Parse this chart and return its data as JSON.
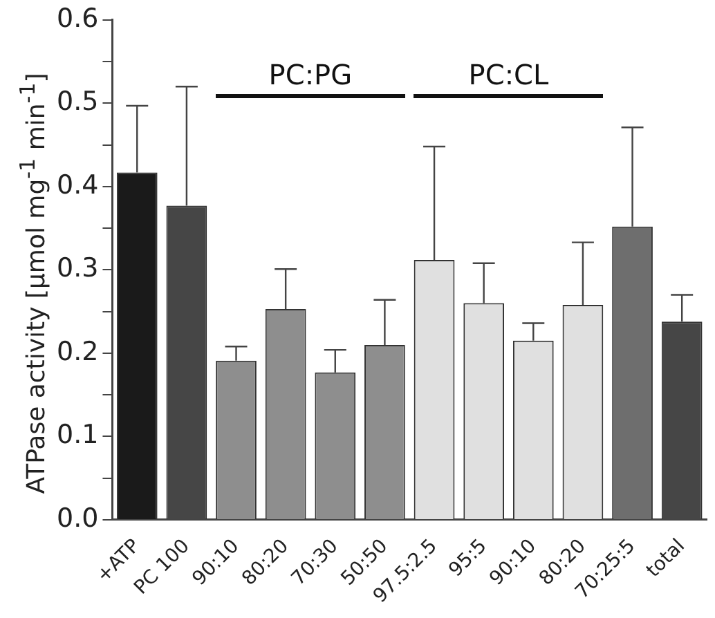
{
  "chart_data": {
    "type": "bar",
    "ylabel": "ATPase activity [µmol mg$^{-1}$ min$^{-1}$]",
    "categories": [
      "+ATP",
      "PC 100",
      "90:10",
      "80:20",
      "70:30",
      "50:50",
      "97.5:2.5",
      "95:5",
      "90:10",
      "80:20",
      "70:25:5",
      "total"
    ],
    "values": [
      0.417,
      0.377,
      0.191,
      0.253,
      0.177,
      0.21,
      0.312,
      0.26,
      0.215,
      0.258,
      0.352,
      0.238
    ],
    "colors": [
      "#1a1a1a",
      "#464646",
      "#8e8e8e",
      "#8e8e8e",
      "#8e8e8e",
      "#8e8e8e",
      "#e0e0e0",
      "#e0e0e0",
      "#e0e0e0",
      "#e0e0e0",
      "#6e6e6e",
      "#464646"
    ],
    "errors": [
      [
        0.417,
        0.497
      ],
      [
        0.377,
        0.52
      ],
      [
        0.191,
        0.208
      ],
      [
        0.253,
        0.301
      ],
      [
        0.177,
        0.204
      ],
      [
        0.21,
        0.264
      ],
      [
        0.312,
        0.448
      ],
      [
        0.26,
        0.308
      ],
      [
        0.215,
        0.236
      ],
      [
        0.258,
        0.333
      ],
      [
        0.352,
        0.471
      ],
      [
        0.238,
        0.27
      ]
    ],
    "annotations": [
      "PC:PG",
      "PC:CL"
    ],
    "ylim": [
      0,
      0.6
    ],
    "yticks": [
      {
        "value": 0,
        "label": "0.0"
      },
      {
        "value": 0.05,
        "label": null
      },
      {
        "value": 0.1,
        "label": "0.1"
      },
      {
        "value": 0.15,
        "label": null
      },
      {
        "value": 0.2,
        "label": "0.2"
      },
      {
        "value": 0.25,
        "label": null
      },
      {
        "value": 0.3,
        "label": "0.3"
      },
      {
        "value": 0.35,
        "label": null
      },
      {
        "value": 0.4,
        "label": "0.4"
      },
      {
        "value": 0.45,
        "label": null
      },
      {
        "value": 0.5,
        "label": "0.5"
      },
      {
        "value": 0.55,
        "label": null
      },
      {
        "value": 0.6,
        "label": "0.6"
      }
    ],
    "grid": false,
    "legend": false
  }
}
